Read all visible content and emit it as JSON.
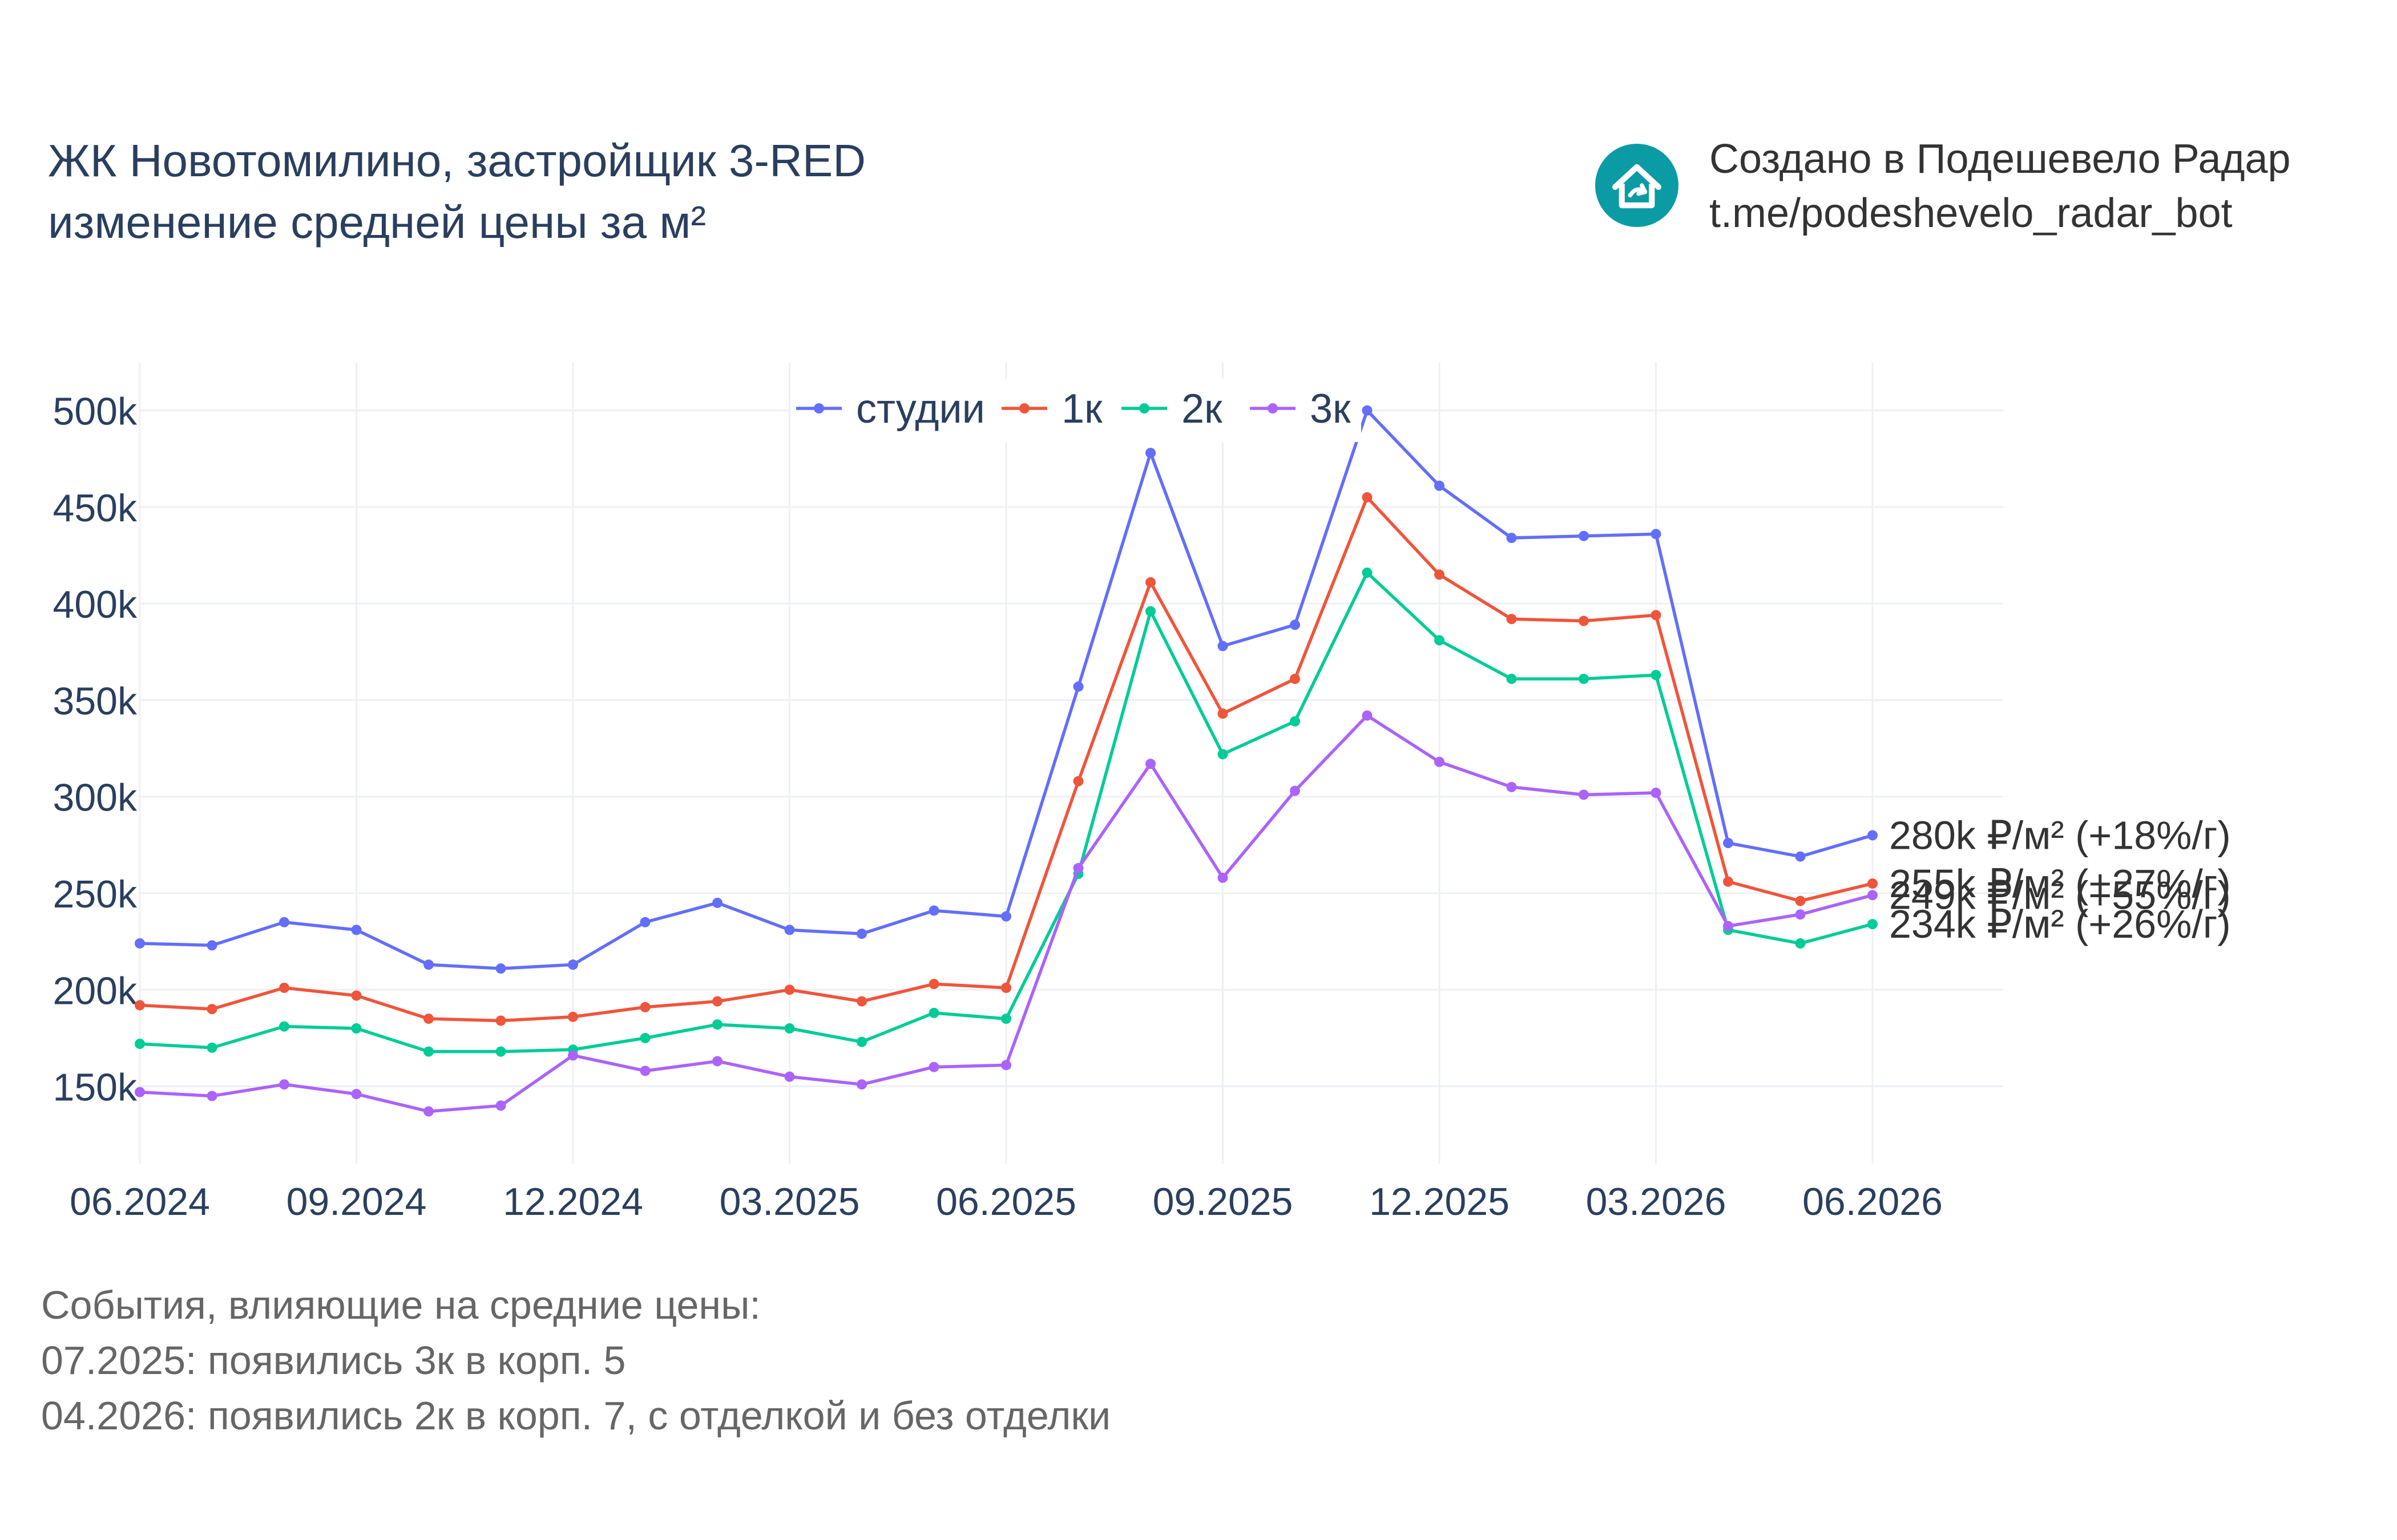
{
  "header": {
    "title_line1": "ЖК Новотомилино, застройщик 3-RED",
    "title_line2": "изменение средней цены за м²"
  },
  "branding": {
    "logo_icon": "house-icon",
    "logo_color": "#0a9ba5",
    "line1": "Создано в Подешевело Радар",
    "line2": "t.me/podeshevelo_radar_bot"
  },
  "events": {
    "heading": "События, влияющие на средние цены:",
    "items": [
      "07.2025: появились 3к в корп. 5",
      "04.2026: появились 2к в корп. 7, с отделкой и без отделки"
    ]
  },
  "chart_data": {
    "type": "line",
    "x": [
      "06.2024",
      "07.2024",
      "08.2024",
      "09.2024",
      "10.2024",
      "11.2024",
      "12.2024",
      "01.2025",
      "02.2025",
      "03.2025",
      "04.2025",
      "05.2025",
      "06.2025",
      "07.2025",
      "08.2025",
      "09.2025",
      "10.2025",
      "11.2025",
      "12.2025",
      "01.2026",
      "02.2026",
      "03.2026",
      "04.2026",
      "05.2026",
      "06.2026"
    ],
    "x_tick_labels": [
      "06.2024",
      "09.2024",
      "12.2024",
      "03.2025",
      "06.2025",
      "09.2025",
      "12.2025",
      "03.2026",
      "06.2026"
    ],
    "y_tick_labels": [
      "150k",
      "200k",
      "250k",
      "300k",
      "350k",
      "400k",
      "450k",
      "500k"
    ],
    "y_ticks": [
      150000,
      200000,
      250000,
      300000,
      350000,
      400000,
      450000,
      500000
    ],
    "ylim": [
      110000,
      525000
    ],
    "grid": true,
    "legend_position": "top-center",
    "series": [
      {
        "name": "студии",
        "color": "#636efa",
        "values": [
          224000,
          223000,
          235000,
          231000,
          213000,
          211000,
          213000,
          235000,
          245000,
          231000,
          229000,
          241000,
          238000,
          357000,
          478000,
          378000,
          389000,
          500000,
          461000,
          434000,
          435000,
          436000,
          276000,
          269000,
          280000
        ],
        "end_label": "280k ₽/м² (+18%/г)"
      },
      {
        "name": "1к",
        "color": "#ef553b",
        "values": [
          192000,
          190000,
          201000,
          197000,
          185000,
          184000,
          186000,
          191000,
          194000,
          200000,
          194000,
          203000,
          201000,
          308000,
          411000,
          343000,
          361000,
          455000,
          415000,
          392000,
          391000,
          394000,
          256000,
          246000,
          255000
        ],
        "end_label": "255k ₽/м² (+27%/г)"
      },
      {
        "name": "2к",
        "color": "#00cc96",
        "values": [
          172000,
          170000,
          181000,
          180000,
          168000,
          168000,
          169000,
          175000,
          182000,
          180000,
          173000,
          188000,
          185000,
          260000,
          396000,
          322000,
          339000,
          416000,
          381000,
          361000,
          361000,
          363000,
          231000,
          224000,
          234000
        ],
        "end_label": "234k ₽/м² (+26%/г)"
      },
      {
        "name": "3к",
        "color": "#ab63fa",
        "values": [
          147000,
          145000,
          151000,
          146000,
          137000,
          140000,
          166000,
          158000,
          163000,
          155000,
          151000,
          160000,
          161000,
          263000,
          317000,
          258000,
          303000,
          342000,
          318000,
          305000,
          301000,
          302000,
          233000,
          239000,
          249000
        ],
        "end_label": "249k ₽/м² (+55%/г)"
      }
    ]
  }
}
